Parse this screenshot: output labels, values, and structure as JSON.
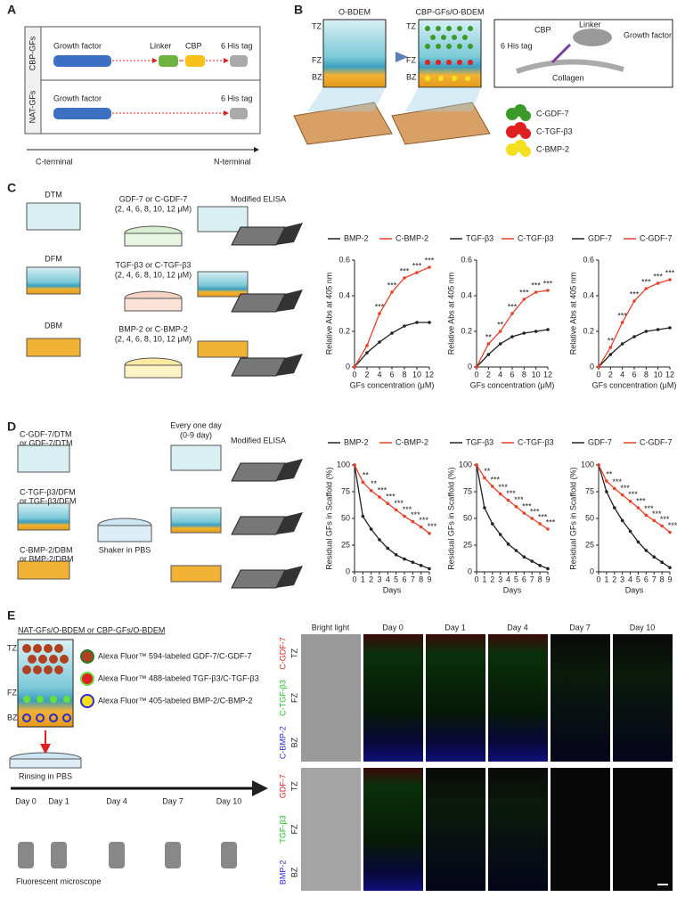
{
  "panel_a": {
    "label": "A",
    "rows": [
      {
        "label": "CBP-GFs",
        "parts": [
          "Growth factor",
          "Linker",
          "CBP",
          "6 His tag"
        ]
      },
      {
        "label": "NAT-GFs",
        "parts": [
          "Growth factor",
          "6 His tag"
        ]
      }
    ],
    "axis_left": "C-terminal",
    "axis_right": "N-terminal"
  },
  "panel_b": {
    "label": "B",
    "left_title": "O-BDEM",
    "right_title": "CBP-GFs/O-BDEM",
    "zones": [
      "TZ",
      "FZ",
      "BZ"
    ],
    "inset": [
      "Linker",
      "Growth factor",
      "CBP",
      "6 His tag",
      "Collagen"
    ],
    "legend": [
      "C-GDF-7",
      "C-TGF-β3",
      "C-BMP-2"
    ]
  },
  "panel_c": {
    "label": "C",
    "scaffolds": [
      "DTM",
      "DFM",
      "DBM"
    ],
    "treatments": [
      "GDF-7 or C-GDF-7",
      "TGF-β3 or C-TGF-β3",
      "BMP-2 or C-BMP-2"
    ],
    "concentrations": "(2, 4, 6, 8, 10, 12 μM)",
    "assay": "Modified ELISA"
  },
  "panel_d": {
    "label": "D",
    "scaffolds": [
      [
        "C-GDF-7/DTM",
        "or GDF-7/DTM"
      ],
      [
        "C-TGF-β3/DFM",
        "or TGF-β3/DFM"
      ],
      [
        "C-BMP-2/DBM",
        "or BMP-2/DBM"
      ]
    ],
    "interval": [
      "Every one day",
      "(0-9 day)"
    ],
    "assay": "Modified ELISA",
    "shaker": "Shaker in PBS"
  },
  "panel_e": {
    "label": "E",
    "title": "NAT-GFs/O-BDEM or CBP-GFs/O-BDEM",
    "zones": [
      "TZ",
      "FZ",
      "BZ"
    ],
    "legend": [
      "Alexa Fluor™ 594-labeled GDF-7/C-GDF-7",
      "Alexa Fluor™ 488-labeled TGF-β3/C-TGF-β3",
      "Alexa Fluor™ 405-labeled BMP-2/C-BMP-2"
    ],
    "rinse": "Rinsing in PBS",
    "days": [
      "Day 0",
      "Day 1",
      "Day 4",
      "Day 7",
      "Day 10"
    ],
    "microscope": "Fluorescent microscope",
    "columns": [
      "Bright light",
      "Day 0",
      "Day 1",
      "Day 4",
      "Day 7",
      "Day 10"
    ],
    "rows": [
      [
        "C-GDF-7",
        "C-TGF-β3",
        "C-BMP-2"
      ],
      [
        "GDF-7",
        "TGF-β3",
        "BMP-2"
      ]
    ]
  },
  "chart_data": [
    {
      "type": "line",
      "x": [
        0,
        2,
        4,
        6,
        8,
        10,
        12
      ],
      "xlim": [
        0,
        12
      ],
      "xticks": [
        0,
        2,
        4,
        6,
        8,
        10,
        12
      ],
      "ylim": [
        0,
        0.6
      ],
      "yticks": [
        0,
        0.2,
        0.4,
        0.6
      ],
      "xlabel": "GFs concentration (μM)",
      "ylabel": "Relative Abs at 405 nm",
      "series": [
        {
          "name": "BMP-2",
          "color": "#222222",
          "values": [
            0,
            0.08,
            0.14,
            0.19,
            0.23,
            0.25,
            0.25
          ]
        },
        {
          "name": "C-BMP-2",
          "color": "#e8402a",
          "values": [
            0,
            0.12,
            0.3,
            0.42,
            0.5,
            0.53,
            0.56
          ]
        }
      ],
      "significance": [
        null,
        null,
        "***",
        "***",
        "***",
        "***",
        "***"
      ]
    },
    {
      "type": "line",
      "x": [
        0,
        2,
        4,
        6,
        8,
        10,
        12
      ],
      "xlim": [
        0,
        12
      ],
      "xticks": [
        0,
        2,
        4,
        6,
        8,
        10,
        12
      ],
      "ylim": [
        0,
        0.6
      ],
      "yticks": [
        0,
        0.2,
        0.4,
        0.6
      ],
      "xlabel": "GFs concentration (μM)",
      "ylabel": "Relative Abs at 405 nm",
      "series": [
        {
          "name": "TGF-β3",
          "color": "#222222",
          "values": [
            0,
            0.07,
            0.13,
            0.17,
            0.19,
            0.2,
            0.21
          ]
        },
        {
          "name": "C-TGF-β3",
          "color": "#e8402a",
          "values": [
            0,
            0.13,
            0.2,
            0.3,
            0.38,
            0.42,
            0.43
          ]
        }
      ],
      "significance": [
        null,
        "**",
        "**",
        "***",
        "***",
        "***",
        "***"
      ]
    },
    {
      "type": "line",
      "x": [
        0,
        2,
        4,
        6,
        8,
        10,
        12
      ],
      "xlim": [
        0,
        12
      ],
      "xticks": [
        0,
        2,
        4,
        6,
        8,
        10,
        12
      ],
      "ylim": [
        0,
        0.6
      ],
      "yticks": [
        0,
        0.2,
        0.4,
        0.6
      ],
      "xlabel": "GFs concentration (μM)",
      "ylabel": "Relative Abs at 405 nm",
      "series": [
        {
          "name": "GDF-7",
          "color": "#222222",
          "values": [
            0,
            0.07,
            0.13,
            0.17,
            0.2,
            0.21,
            0.22
          ]
        },
        {
          "name": "C-GDF-7",
          "color": "#e8402a",
          "values": [
            0,
            0.11,
            0.25,
            0.37,
            0.44,
            0.47,
            0.49
          ]
        }
      ],
      "significance": [
        null,
        "**",
        "***",
        "***",
        "***",
        "***",
        "***"
      ]
    },
    {
      "type": "line",
      "x": [
        0,
        1,
        2,
        3,
        4,
        5,
        6,
        7,
        8,
        9
      ],
      "xlim": [
        0,
        9
      ],
      "xticks": [
        0,
        1,
        2,
        3,
        4,
        5,
        6,
        7,
        8,
        9
      ],
      "ylim": [
        0,
        100
      ],
      "yticks": [
        0,
        25,
        50,
        75,
        100
      ],
      "xlabel": "Days",
      "ylabel": "Residual GFs in Scaffold (%)",
      "series": [
        {
          "name": "BMP-2",
          "color": "#222222",
          "values": [
            100,
            52,
            40,
            30,
            22,
            16,
            12,
            9,
            6,
            3
          ]
        },
        {
          "name": "C-BMP-2",
          "color": "#e8402a",
          "values": [
            100,
            84,
            76,
            70,
            64,
            58,
            52,
            47,
            42,
            36
          ]
        }
      ],
      "significance": [
        null,
        "**",
        "**",
        "***",
        "***",
        "***",
        "***",
        "***",
        "***",
        "***"
      ]
    },
    {
      "type": "line",
      "x": [
        0,
        1,
        2,
        3,
        4,
        5,
        6,
        7,
        8,
        9
      ],
      "xlim": [
        0,
        9
      ],
      "xticks": [
        0,
        1,
        2,
        3,
        4,
        5,
        6,
        7,
        8,
        9
      ],
      "ylim": [
        0,
        100
      ],
      "yticks": [
        0,
        25,
        50,
        75,
        100
      ],
      "xlabel": "Days",
      "ylabel": "Residual GFs in Scaffold (%)",
      "series": [
        {
          "name": "TGF-β3",
          "color": "#222222",
          "values": [
            100,
            60,
            45,
            35,
            26,
            20,
            14,
            10,
            6,
            3
          ]
        },
        {
          "name": "C-TGF-β3",
          "color": "#e8402a",
          "values": [
            100,
            88,
            80,
            73,
            67,
            61,
            55,
            50,
            45,
            40
          ]
        }
      ],
      "significance": [
        null,
        "**",
        "***",
        "***",
        "***",
        "***",
        "***",
        "***",
        "***",
        "***"
      ]
    },
    {
      "type": "line",
      "x": [
        0,
        1,
        2,
        3,
        4,
        5,
        6,
        7,
        8,
        9
      ],
      "xlim": [
        0,
        9
      ],
      "xticks": [
        0,
        1,
        2,
        3,
        4,
        5,
        6,
        7,
        8,
        9
      ],
      "ylim": [
        0,
        100
      ],
      "yticks": [
        0,
        25,
        50,
        75,
        100
      ],
      "xlabel": "Days",
      "ylabel": "Residual GFs in Scaffold (%)",
      "series": [
        {
          "name": "GDF-7",
          "color": "#222222",
          "values": [
            100,
            75,
            60,
            48,
            38,
            28,
            20,
            14,
            9,
            4
          ]
        },
        {
          "name": "C-GDF-7",
          "color": "#e8402a",
          "values": [
            100,
            85,
            78,
            72,
            66,
            60,
            53,
            48,
            43,
            37
          ]
        }
      ],
      "significance": [
        null,
        "**",
        "***",
        "***",
        "***",
        "***",
        "***",
        "***",
        "***",
        "***"
      ]
    }
  ]
}
